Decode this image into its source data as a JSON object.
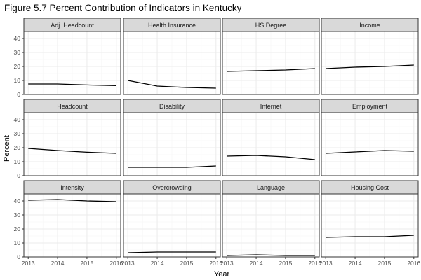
{
  "chart_data": {
    "type": "line",
    "title": "Figure 5.7 Percent Contribution of Indicators in Kentucky",
    "xlabel": "Year",
    "ylabel": "Percent",
    "x": [
      2013,
      2014,
      2015,
      2016
    ],
    "x_ticks": [
      "2013",
      "2014",
      "2015",
      "2016"
    ],
    "ylim": [
      0,
      45
    ],
    "y_ticks": [
      "0",
      "10",
      "20",
      "30",
      "40"
    ],
    "grid": true,
    "layout": "facet grid 3 rows x 4 columns",
    "facets": [
      {
        "name": "Adj. Headcount",
        "values": [
          7.5,
          7.5,
          6.8,
          6.3
        ]
      },
      {
        "name": "Health Insurance",
        "values": [
          10.0,
          6.0,
          5.0,
          4.5
        ]
      },
      {
        "name": "HS Degree",
        "values": [
          16.5,
          17.0,
          17.5,
          18.5
        ]
      },
      {
        "name": "Income",
        "values": [
          18.5,
          19.5,
          20.0,
          21.0
        ]
      },
      {
        "name": "Headcount",
        "values": [
          19.5,
          18.0,
          16.8,
          16.0
        ]
      },
      {
        "name": "Disability",
        "values": [
          6.0,
          6.0,
          6.0,
          7.0
        ]
      },
      {
        "name": "Internet",
        "values": [
          14.0,
          14.5,
          13.5,
          11.5
        ]
      },
      {
        "name": "Employment",
        "values": [
          16.0,
          17.0,
          18.0,
          17.5
        ]
      },
      {
        "name": "Intensity",
        "values": [
          40.5,
          41.0,
          40.0,
          39.5
        ]
      },
      {
        "name": "Overcrowding",
        "values": [
          3.0,
          3.5,
          3.5,
          3.5
        ]
      },
      {
        "name": "Language",
        "values": [
          1.0,
          1.5,
          1.0,
          1.0
        ]
      },
      {
        "name": "Housing Cost",
        "values": [
          14.0,
          14.5,
          14.5,
          15.5
        ]
      }
    ],
    "colors": {
      "line": "#000000",
      "strip_fill": "#d9d9d9",
      "panel_border": "#333333",
      "grid_major": "#ebebeb",
      "grid_minor": "#f5f5f5"
    }
  }
}
